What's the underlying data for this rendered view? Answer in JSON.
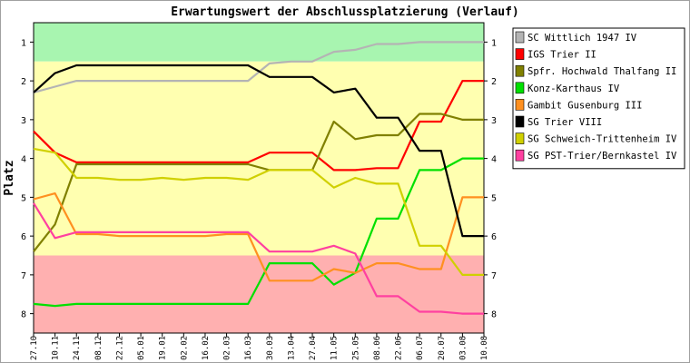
{
  "chart_data": {
    "type": "line",
    "title": "Erwartungswert der Abschlussplatzierung (Verlauf)",
    "ylabel": "Platz",
    "xlabel": "",
    "ylim": [
      0.5,
      8.5
    ],
    "y_inverted": true,
    "yticks": [
      1,
      2,
      3,
      4,
      5,
      6,
      7,
      8
    ],
    "categories": [
      "27.10",
      "10.11",
      "24.11",
      "08.12",
      "22.12",
      "05.01",
      "19.01",
      "02.02",
      "16.02",
      "02.03",
      "16.03",
      "30.03",
      "13.04",
      "27.04",
      "11.05",
      "25.05",
      "08.06",
      "22.06",
      "06.07",
      "20.07",
      "03.08",
      "10.08"
    ],
    "bands": [
      {
        "from": 0.5,
        "to": 1.5,
        "color": "#a8f5b0",
        "meaning": "Platz 1"
      },
      {
        "from": 1.5,
        "to": 6.5,
        "color": "#ffffb0",
        "meaning": "Platz 2-6"
      },
      {
        "from": 6.5,
        "to": 8.5,
        "color": "#ffb0b0",
        "meaning": "Platz 7-8"
      }
    ],
    "legend_position": "right",
    "grid": false,
    "series": [
      {
        "name": "SC Wittlich 1947 IV",
        "color": "#b4b4b4",
        "values": [
          2.3,
          2.15,
          2.0,
          2.0,
          2.0,
          2.0,
          2.0,
          2.0,
          2.0,
          2.0,
          2.0,
          1.55,
          1.5,
          1.5,
          1.25,
          1.2,
          1.05,
          1.05,
          1.0,
          1.0,
          1.0,
          1.0
        ]
      },
      {
        "name": "IGS Trier II",
        "color": "#ff0000",
        "values": [
          3.3,
          3.85,
          4.1,
          4.1,
          4.1,
          4.1,
          4.1,
          4.1,
          4.1,
          4.1,
          4.1,
          3.85,
          3.85,
          3.85,
          4.3,
          4.3,
          4.25,
          4.25,
          3.05,
          3.05,
          2.0,
          2.0
        ]
      },
      {
        "name": "Spfr. Hochwald Thalfang II",
        "color": "#808000",
        "values": [
          6.4,
          5.7,
          4.15,
          4.15,
          4.15,
          4.15,
          4.15,
          4.15,
          4.15,
          4.15,
          4.15,
          4.3,
          4.3,
          4.3,
          3.05,
          3.5,
          3.4,
          3.4,
          2.85,
          2.85,
          3.0,
          3.0
        ]
      },
      {
        "name": "Konz-Karthaus IV",
        "color": "#00e000",
        "values": [
          7.75,
          7.8,
          7.75,
          7.75,
          7.75,
          7.75,
          7.75,
          7.75,
          7.75,
          7.75,
          7.75,
          6.7,
          6.7,
          6.7,
          7.25,
          6.95,
          5.55,
          5.55,
          4.3,
          4.3,
          4.0,
          4.0
        ]
      },
      {
        "name": "Gambit Gusenburg III",
        "color": "#ff9020",
        "values": [
          5.05,
          4.9,
          5.95,
          5.95,
          6.0,
          6.0,
          6.0,
          6.0,
          6.0,
          5.95,
          5.95,
          7.15,
          7.15,
          7.15,
          6.85,
          6.95,
          6.7,
          6.7,
          6.85,
          6.85,
          5.0,
          5.0
        ]
      },
      {
        "name": "SG Trier VIII",
        "color": "#000000",
        "values": [
          2.3,
          1.8,
          1.6,
          1.6,
          1.6,
          1.6,
          1.6,
          1.6,
          1.6,
          1.6,
          1.6,
          1.9,
          1.9,
          1.9,
          2.3,
          2.2,
          2.95,
          2.95,
          3.8,
          3.8,
          6.0,
          6.0
        ]
      },
      {
        "name": "SG Schweich-Trittenheim IV",
        "color": "#d0d000",
        "values": [
          3.75,
          3.85,
          4.5,
          4.5,
          4.55,
          4.55,
          4.5,
          4.55,
          4.5,
          4.5,
          4.55,
          4.3,
          4.3,
          4.3,
          4.75,
          4.5,
          4.65,
          4.65,
          6.25,
          6.25,
          7.0,
          7.0
        ]
      },
      {
        "name": "SG PST-Trier/Bernkastel IV",
        "color": "#ff40a0",
        "values": [
          5.15,
          6.05,
          5.9,
          5.9,
          5.9,
          5.9,
          5.9,
          5.9,
          5.9,
          5.9,
          5.9,
          6.4,
          6.4,
          6.4,
          6.25,
          6.45,
          7.55,
          7.55,
          7.95,
          7.95,
          8.0,
          8.0
        ]
      }
    ]
  }
}
